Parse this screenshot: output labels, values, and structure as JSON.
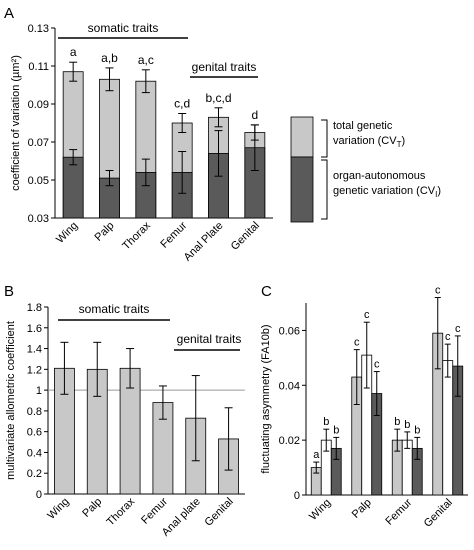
{
  "colors": {
    "total": "#c8c8c8",
    "autonomous": "#5a5a5a",
    "white": "#ffffff",
    "light": "#c8c8c8",
    "dark": "#5a5a5a",
    "reference": "#999999"
  },
  "chart_data": [
    {
      "panel": "A",
      "type": "bar",
      "ylabel": "coefficient of variation (µm²)",
      "ylim": [
        0.03,
        0.13
      ],
      "yticks": [
        "0.03",
        "0.05",
        "0.07",
        "0.09",
        "0.11",
        "0.13"
      ],
      "categories": [
        "Wing",
        "Palp",
        "Thorax",
        "Femur",
        "Anal Plate",
        "Genital"
      ],
      "series": [
        {
          "name": "total genetic variation (CVT)",
          "values": [
            0.107,
            0.103,
            0.102,
            0.08,
            0.083,
            0.075
          ],
          "errors": [
            0.005,
            0.006,
            0.006,
            0.005,
            0.005,
            0.004
          ]
        },
        {
          "name": "organ-autonomous genetic variation (CVI)",
          "values": [
            0.062,
            0.051,
            0.054,
            0.054,
            0.064,
            0.067
          ],
          "errors": [
            0.004,
            0.004,
            0.007,
            0.011,
            0.012,
            0.012
          ]
        }
      ],
      "letters": [
        "a",
        "a,b",
        "a,c",
        "c,d",
        "b,c,d",
        "d"
      ],
      "groups": [
        {
          "label": "somatic traits"
        },
        {
          "label": "genital traits"
        }
      ],
      "legend": {
        "total_label": "total genetic variation (CV",
        "total_sub": "T",
        "auto_label_1": "organ-autonomous",
        "auto_label_2": "genetic variation (CV",
        "auto_sub": "I",
        "close": ")"
      }
    },
    {
      "panel": "B",
      "type": "bar",
      "ylabel": "multivariate allometric coefficient",
      "ylim": [
        0,
        1.8
      ],
      "yticks": [
        "0",
        "0.2",
        "0.4",
        "0.6",
        "0.8",
        "1",
        "1.2",
        "1.4",
        "1.6",
        "1.8"
      ],
      "categories": [
        "Wing",
        "Palp",
        "Thorax",
        "Femur",
        "Anal plate",
        "Genital"
      ],
      "values": [
        1.21,
        1.2,
        1.21,
        0.88,
        0.73,
        0.53
      ],
      "errors": [
        0.25,
        0.26,
        0.19,
        0.16,
        0.41,
        0.3
      ],
      "reference_line": 1,
      "groups": [
        {
          "label": "somatic traits"
        },
        {
          "label": "genital traits"
        }
      ]
    },
    {
      "panel": "C",
      "type": "bar",
      "ylabel": "fluctuating asymmetry (FA10b)",
      "ylim": [
        0,
        0.07
      ],
      "yticks": [
        "0",
        "0.02",
        "0.04",
        "0.06"
      ],
      "categories": [
        "Wing",
        "Palp",
        "Femur",
        "Genital"
      ],
      "series": [
        {
          "values": [
            0.01,
            0.043,
            0.02,
            0.059
          ],
          "errors": [
            0.002,
            0.01,
            0.004,
            0.013
          ]
        },
        {
          "values": [
            0.02,
            0.051,
            0.02,
            0.049
          ],
          "errors": [
            0.004,
            0.012,
            0.003,
            0.006
          ]
        },
        {
          "values": [
            0.017,
            0.037,
            0.017,
            0.047
          ],
          "errors": [
            0.004,
            0.008,
            0.004,
            0.011
          ]
        }
      ],
      "letters": [
        [
          "a",
          "b",
          "b"
        ],
        [
          "c",
          "c",
          "c"
        ],
        [
          "b",
          "b",
          "b"
        ],
        [
          "c",
          "c",
          "c"
        ]
      ]
    }
  ]
}
